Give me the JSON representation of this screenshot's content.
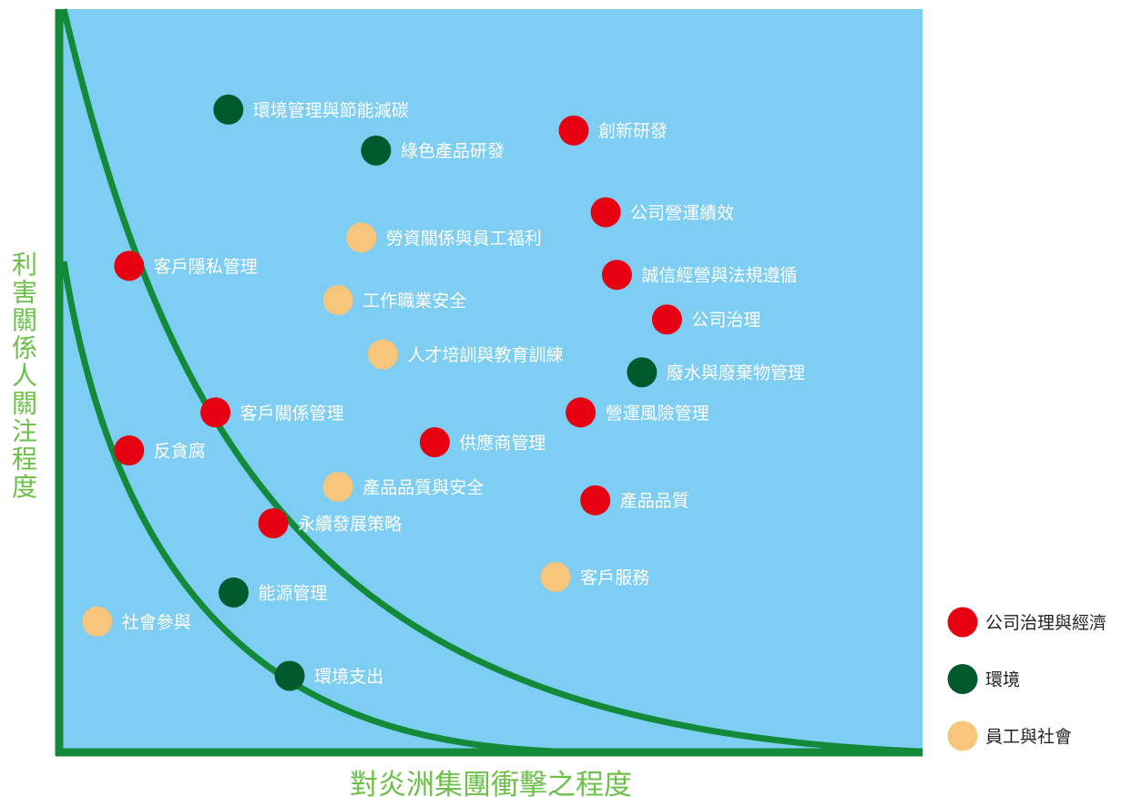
{
  "chart_data": {
    "type": "scatter",
    "title": "",
    "xlabel": "對炎洲集團衝擊之程度",
    "ylabel": "利害關係人關注程度",
    "xlim": [
      0,
      100
    ],
    "ylim": [
      0,
      100
    ],
    "grid": false,
    "legend_position": "right",
    "background_color": "#7ecdf2",
    "curve_color": "#138a3a",
    "series": [
      {
        "name": "公司治理與經濟",
        "color": "#e60012",
        "points": [
          {
            "label": "創新研發",
            "x": 59.6,
            "y": 83.7
          },
          {
            "label": "公司營運績效",
            "x": 63.3,
            "y": 72.7
          },
          {
            "label": "誠信經營與法規遵循",
            "x": 64.6,
            "y": 64.3
          },
          {
            "label": "公司治理",
            "x": 70.4,
            "y": 58.3
          },
          {
            "label": "營運風險管理",
            "x": 60.4,
            "y": 45.8
          },
          {
            "label": "供應商管理",
            "x": 43.5,
            "y": 41.8
          },
          {
            "label": "產品品質",
            "x": 62.1,
            "y": 34.0
          },
          {
            "label": "客戶隱私管理",
            "x": 8.1,
            "y": 65.5
          },
          {
            "label": "客戶關係管理",
            "x": 18.1,
            "y": 45.8
          },
          {
            "label": "反貪腐",
            "x": 8.1,
            "y": 40.7
          },
          {
            "label": "永續發展策略",
            "x": 24.8,
            "y": 30.9
          }
        ]
      },
      {
        "name": "環境",
        "color": "#005a2e",
        "points": [
          {
            "label": "環境管理與節能減碳",
            "x": 19.6,
            "y": 86.5
          },
          {
            "label": "綠色產品研發",
            "x": 36.7,
            "y": 81.0
          },
          {
            "label": "廢水與廢棄物管理",
            "x": 67.5,
            "y": 51.2
          },
          {
            "label": "能源管理",
            "x": 20.2,
            "y": 21.6
          },
          {
            "label": "環境支出",
            "x": 26.7,
            "y": 10.4
          }
        ]
      },
      {
        "name": "員工與社會",
        "color": "#f7c57c",
        "points": [
          {
            "label": "勞資關係與員工福利",
            "x": 35.0,
            "y": 69.3
          },
          {
            "label": "工作職業安全",
            "x": 32.3,
            "y": 60.9
          },
          {
            "label": "人才培訓與教育訓練",
            "x": 37.5,
            "y": 53.6
          },
          {
            "label": "產品品質與安全",
            "x": 32.3,
            "y": 35.8
          },
          {
            "label": "客戶服務",
            "x": 57.5,
            "y": 23.7
          },
          {
            "label": "社會參與",
            "x": 4.4,
            "y": 17.7
          }
        ]
      }
    ]
  }
}
